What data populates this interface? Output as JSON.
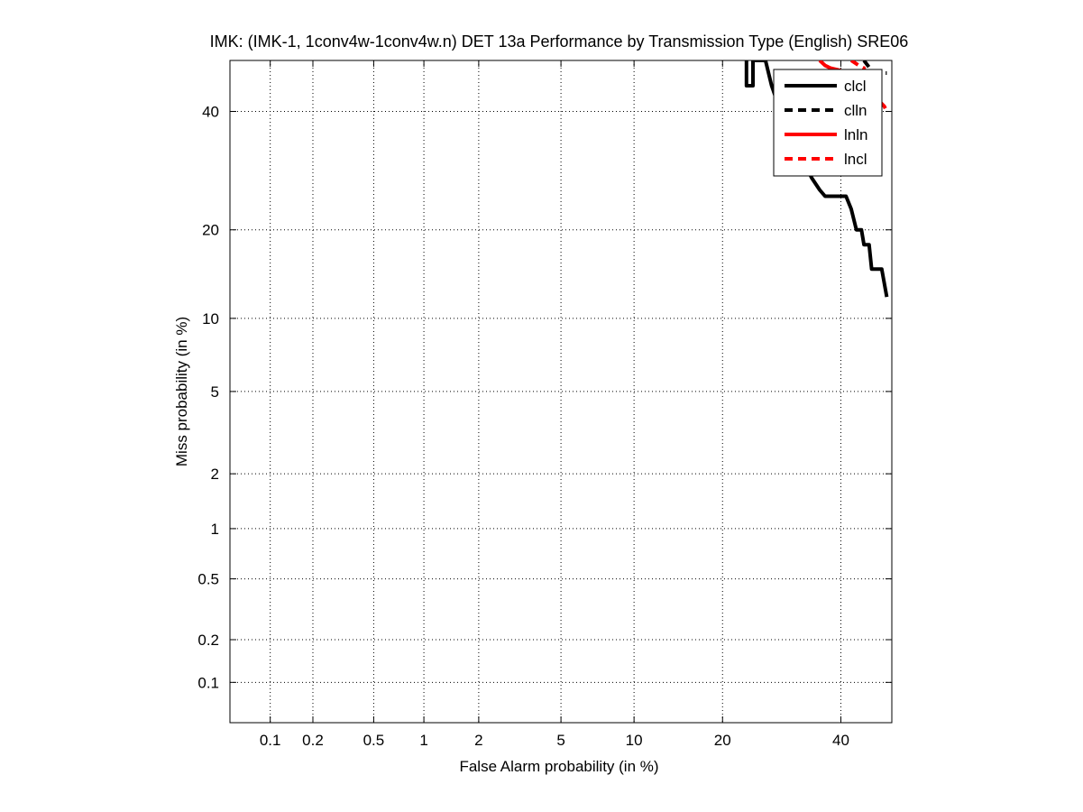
{
  "chart_data": {
    "type": "line",
    "scale": "normal-deviate (DET)",
    "title": "IMK: (IMK-1, 1conv4w-1conv4w.n) DET 13a Performance by Transmission Type (English) SRE06",
    "xlabel": "False Alarm probability (in %)",
    "ylabel": "Miss probability (in %)",
    "xlim": [
      0.05,
      50
    ],
    "ylim": [
      0.05,
      50
    ],
    "xticks": [
      0.1,
      0.2,
      0.5,
      1,
      2,
      5,
      10,
      20,
      40
    ],
    "xtick_labels": [
      "0.1",
      "0.2",
      "0.5",
      "1",
      "2",
      "5",
      "10",
      "20",
      "40"
    ],
    "yticks": [
      0.1,
      0.2,
      0.5,
      1,
      2,
      5,
      10,
      20,
      40
    ],
    "ytick_labels": [
      "0.1",
      "0.2",
      "0.5",
      "1",
      "2",
      "5",
      "10",
      "20",
      "40"
    ],
    "grid": true,
    "legend_position": "top-right",
    "series": [
      {
        "name": "clcl",
        "color": "#000000",
        "dash": "solid",
        "points": [
          [
            23.5,
            50
          ],
          [
            23.5,
            45
          ],
          [
            24.5,
            45
          ],
          [
            24.5,
            50
          ],
          [
            26.5,
            50
          ],
          [
            27.5,
            45
          ],
          [
            29,
            40
          ],
          [
            31,
            35
          ],
          [
            33,
            31
          ],
          [
            34.5,
            28
          ],
          [
            36,
            26
          ],
          [
            37,
            25
          ],
          [
            41,
            25
          ],
          [
            42,
            23
          ],
          [
            43,
            20
          ],
          [
            44,
            20
          ],
          [
            44.5,
            18
          ],
          [
            45.5,
            18
          ],
          [
            46,
            15
          ],
          [
            48,
            15
          ],
          [
            49,
            12
          ]
        ]
      },
      {
        "name": "clln",
        "color": "#000000",
        "dash": "dashed",
        "points": [
          [
            44.5,
            50
          ],
          [
            46,
            48
          ],
          [
            48,
            47.5
          ],
          [
            49,
            47.5
          ]
        ]
      },
      {
        "name": "lnln",
        "color": "#ff0000",
        "dash": "solid",
        "points": [
          [
            36,
            50
          ],
          [
            37,
            49
          ],
          [
            38,
            48.5
          ],
          [
            40,
            48
          ]
        ]
      },
      {
        "name": "lncl",
        "color": "#ff0000",
        "dash": "dashed",
        "points": [
          [
            42,
            50
          ],
          [
            43.5,
            49
          ],
          [
            44.5,
            48.5
          ],
          [
            45.5,
            44
          ],
          [
            46.5,
            43
          ],
          [
            47.5,
            42
          ],
          [
            48.5,
            41
          ],
          [
            49,
            40
          ]
        ]
      }
    ]
  }
}
